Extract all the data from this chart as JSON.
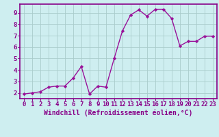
{
  "x": [
    0,
    1,
    2,
    3,
    4,
    5,
    6,
    7,
    8,
    9,
    10,
    11,
    12,
    13,
    14,
    15,
    16,
    17,
    18,
    19,
    20,
    21,
    22,
    23
  ],
  "y": [
    1.9,
    2.0,
    2.1,
    2.5,
    2.6,
    2.6,
    3.3,
    4.3,
    1.9,
    2.6,
    2.5,
    5.0,
    7.4,
    8.8,
    9.25,
    8.7,
    9.3,
    9.3,
    8.5,
    6.1,
    6.5,
    6.5,
    6.95,
    6.95
  ],
  "line_color": "#991199",
  "marker": "D",
  "marker_size": 2.2,
  "linewidth": 1.0,
  "background_color": "#ceeef0",
  "grid_color": "#aacccc",
  "xlabel": "Windchill (Refroidissement éolien,°C)",
  "xlim": [
    -0.5,
    23.5
  ],
  "ylim": [
    1.5,
    9.75
  ],
  "xticks": [
    0,
    1,
    2,
    3,
    4,
    5,
    6,
    7,
    8,
    9,
    10,
    11,
    12,
    13,
    14,
    15,
    16,
    17,
    18,
    19,
    20,
    21,
    22,
    23
  ],
  "yticks": [
    2,
    3,
    4,
    5,
    6,
    7,
    8,
    9
  ],
  "xlabel_fontsize": 7.0,
  "tick_fontsize": 6.5,
  "spine_color": "#880088"
}
